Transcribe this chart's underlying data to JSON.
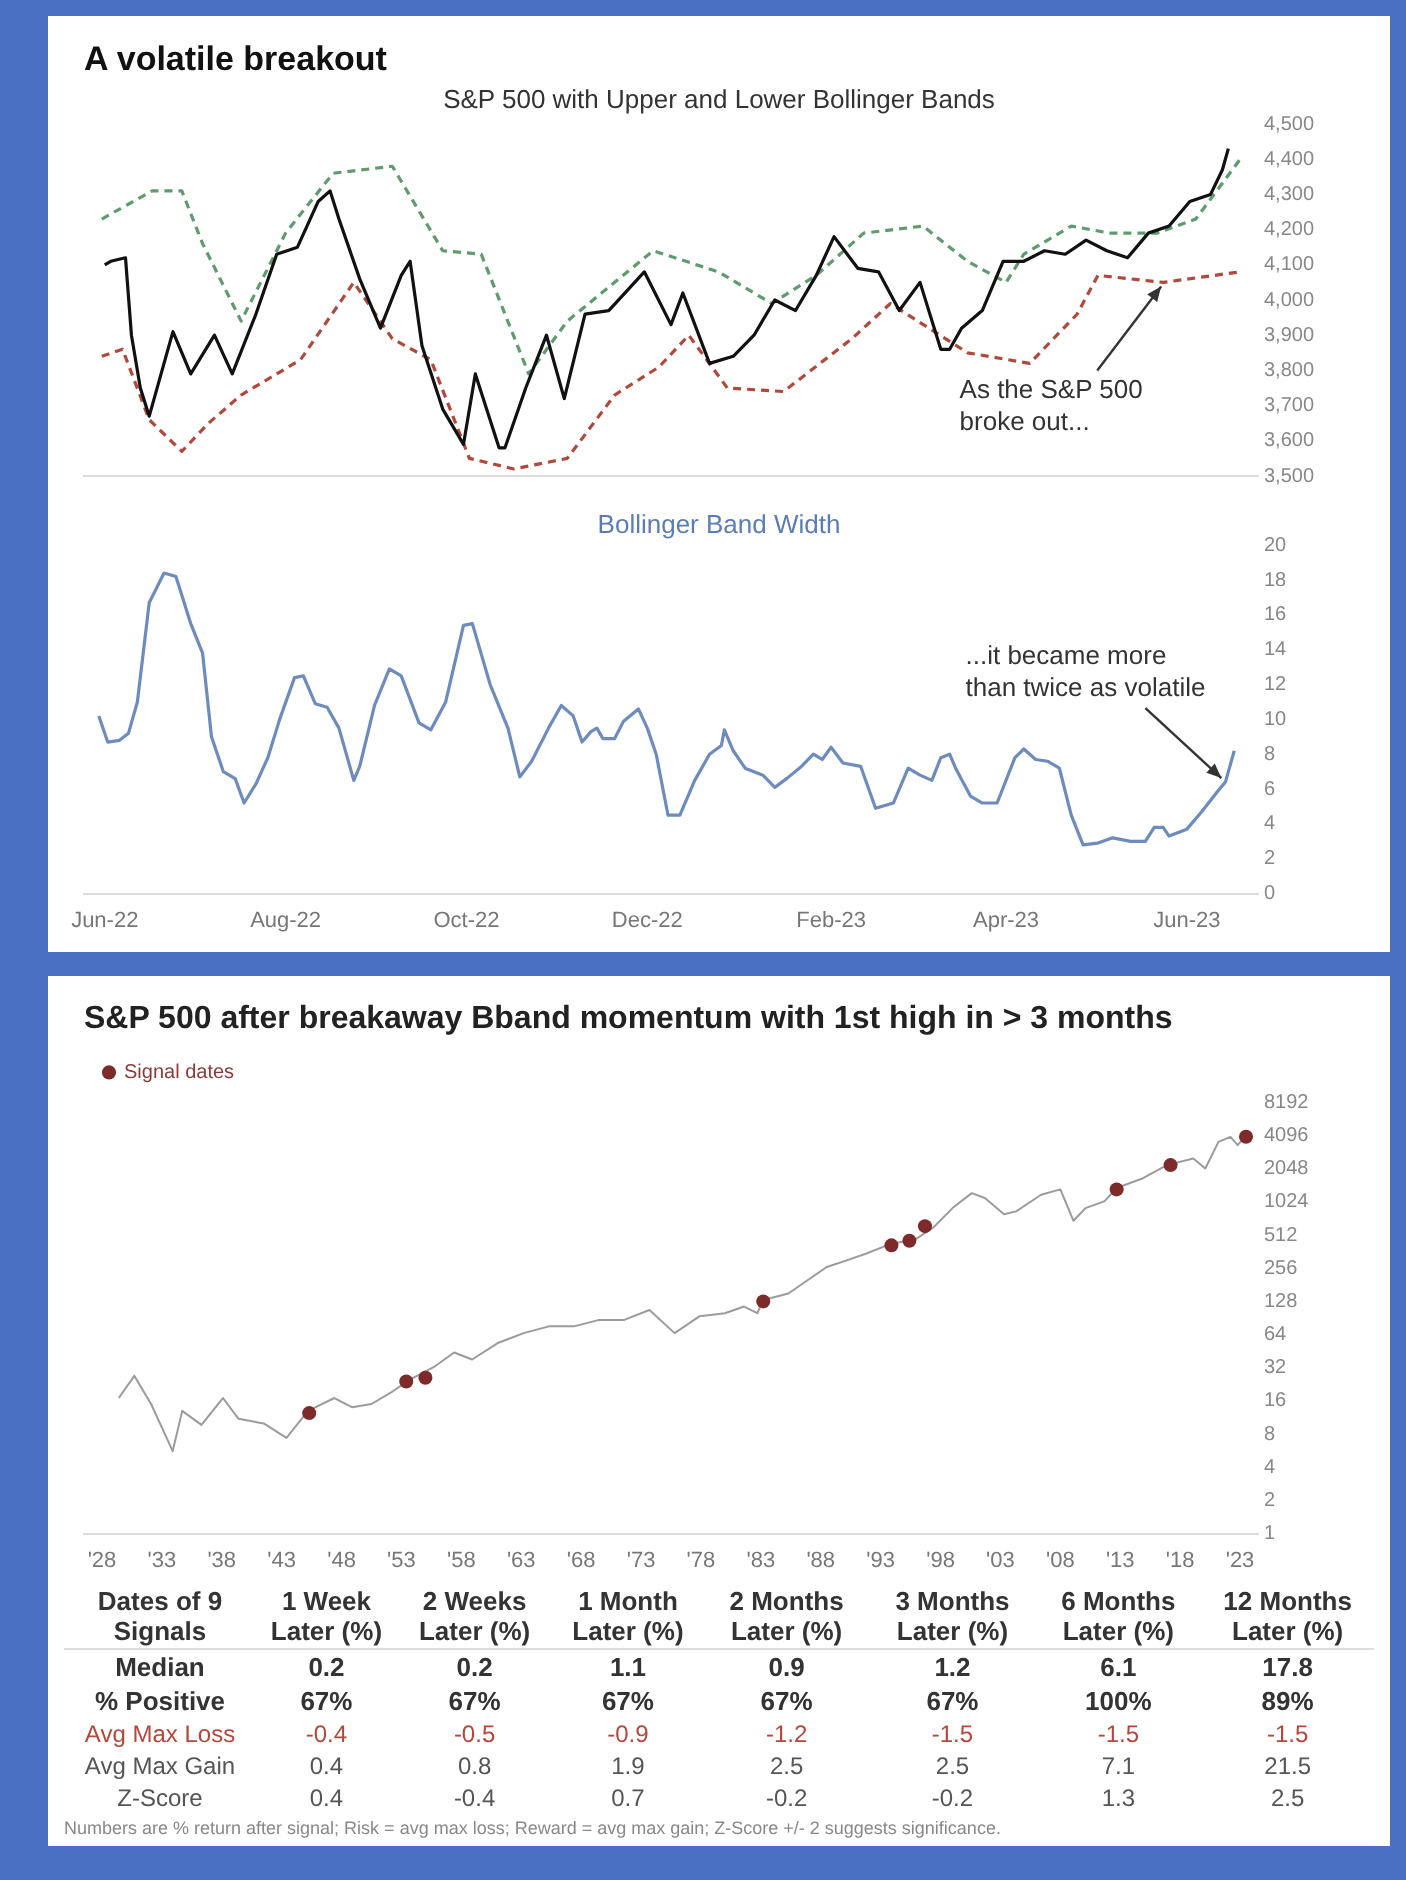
{
  "chart_data": [
    {
      "type": "line",
      "title": "A volatile breakout",
      "subtitle": "S&P 500 with Upper and Lower Bollinger Bands",
      "xlim": [
        "2022-05-25",
        "2023-06-25"
      ],
      "ylim": [
        3500,
        4500
      ],
      "yticks": [
        {
          "value": 3500,
          "label": "3,500"
        },
        {
          "value": 3600,
          "label": "3,600"
        },
        {
          "value": 3700,
          "label": "3,700"
        },
        {
          "value": 3800,
          "label": "3,800"
        },
        {
          "value": 3900,
          "label": "3,900"
        },
        {
          "value": 4000,
          "label": "4,000"
        },
        {
          "value": 4100,
          "label": "4,100"
        },
        {
          "value": 4200,
          "label": "4,200"
        },
        {
          "value": 4300,
          "label": "4,300"
        },
        {
          "value": 4400,
          "label": "4,400"
        },
        {
          "value": 4500,
          "label": "4,500"
        }
      ],
      "tick_labels": "y",
      "grid": false,
      "legend": false,
      "annotations": [
        {
          "text": "As the S&P 500 broke out...",
          "x": "2023-05-24",
          "y": 4050
        }
      ],
      "series": [
        {
          "color": "#5f9b6e",
          "line_style": "dashed",
          "x": [
            "2022-05-31",
            "2022-06-17",
            "2022-06-27",
            "2022-07-04",
            "2022-07-17",
            "2022-08-01",
            "2022-08-17",
            "2022-09-06",
            "2022-09-23",
            "2022-10-06",
            "2022-10-22",
            "2022-11-04",
            "2022-12-03",
            "2022-12-25",
            "2023-01-12",
            "2023-01-27",
            "2023-02-12",
            "2023-03-04",
            "2023-03-19",
            "2023-04-01",
            "2023-04-07",
            "2023-04-23",
            "2023-05-06",
            "2023-05-22",
            "2023-06-04",
            "2023-06-19"
          ],
          "values": [
            4230,
            4310,
            4310,
            4160,
            3940,
            4190,
            4360,
            4380,
            4140,
            4130,
            3790,
            3940,
            4140,
            4080,
            3990,
            4070,
            4190,
            4210,
            4110,
            4050,
            4130,
            4210,
            4190,
            4190,
            4230,
            4400
          ]
        },
        {
          "color": "#b0493c",
          "line_style": "dashed",
          "x": [
            "2022-05-31",
            "2022-06-07",
            "2022-06-16",
            "2022-06-27",
            "2022-07-06",
            "2022-07-17",
            "2022-08-06",
            "2022-08-24",
            "2022-09-06",
            "2022-09-19",
            "2022-10-02",
            "2022-10-17",
            "2022-11-04",
            "2022-11-20",
            "2022-12-05",
            "2022-12-15",
            "2022-12-28",
            "2023-01-16",
            "2023-02-08",
            "2023-02-21",
            "2023-03-06",
            "2023-03-19",
            "2023-04-09",
            "2023-04-25",
            "2023-05-02",
            "2023-05-24",
            "2023-06-19"
          ],
          "values": [
            3840,
            3860,
            3660,
            3570,
            3650,
            3730,
            3830,
            4050,
            3890,
            3830,
            3550,
            3520,
            3550,
            3730,
            3810,
            3900,
            3750,
            3740,
            3890,
            3990,
            3920,
            3850,
            3820,
            3960,
            4070,
            4050,
            4080
          ]
        },
        {
          "color": "#111111",
          "line_style": "solid",
          "x": [
            "2022-06-01",
            "2022-06-03",
            "2022-06-08",
            "2022-06-10",
            "2022-06-13",
            "2022-06-16",
            "2022-06-24",
            "2022-06-30",
            "2022-07-08",
            "2022-07-14",
            "2022-07-22",
            "2022-07-29",
            "2022-08-05",
            "2022-08-12",
            "2022-08-16",
            "2022-08-19",
            "2022-08-26",
            "2022-09-02",
            "2022-09-09",
            "2022-09-12",
            "2022-09-16",
            "2022-09-23",
            "2022-09-30",
            "2022-10-04",
            "2022-10-12",
            "2022-10-14",
            "2022-10-21",
            "2022-10-28",
            "2022-11-03",
            "2022-11-10",
            "2022-11-18",
            "2022-11-30",
            "2022-12-09",
            "2022-12-13",
            "2022-12-22",
            "2022-12-30",
            "2023-01-06",
            "2023-01-13",
            "2023-01-20",
            "2023-01-27",
            "2023-02-02",
            "2023-02-10",
            "2023-02-17",
            "2023-02-24",
            "2023-03-03",
            "2023-03-10",
            "2023-03-13",
            "2023-03-17",
            "2023-03-24",
            "2023-03-31",
            "2023-04-07",
            "2023-04-14",
            "2023-04-21",
            "2023-04-28",
            "2023-05-05",
            "2023-05-12",
            "2023-05-19",
            "2023-05-26",
            "2023-06-02",
            "2023-06-09",
            "2023-06-13",
            "2023-06-15"
          ],
          "values": [
            4100,
            4110,
            4120,
            3900,
            3750,
            3670,
            3910,
            3790,
            3900,
            3790,
            3960,
            4130,
            4150,
            4280,
            4310,
            4230,
            4060,
            3920,
            4070,
            4110,
            3870,
            3690,
            3590,
            3790,
            3580,
            3580,
            3750,
            3900,
            3720,
            3960,
            3970,
            4080,
            3930,
            4020,
            3820,
            3840,
            3900,
            4000,
            3970,
            4070,
            4180,
            4090,
            4080,
            3970,
            4050,
            3860,
            3860,
            3920,
            3970,
            4110,
            4110,
            4140,
            4130,
            4170,
            4140,
            4120,
            4190,
            4210,
            4280,
            4300,
            4370,
            4430
          ]
        }
      ]
    },
    {
      "type": "line",
      "title": "Bollinger Band Width",
      "xlim": [
        "2022-05-25",
        "2023-06-25"
      ],
      "ylim": [
        0,
        20
      ],
      "yticks": [
        0,
        2,
        4,
        6,
        8,
        10,
        12,
        14,
        16,
        18,
        20
      ],
      "xticks": [
        {
          "value": "2022-06-01",
          "label": "Jun-22"
        },
        {
          "value": "2022-08-01",
          "label": "Aug-22"
        },
        {
          "value": "2022-10-01",
          "label": "Oct-22"
        },
        {
          "value": "2022-12-01",
          "label": "Dec-22"
        },
        {
          "value": "2023-02-01",
          "label": "Feb-23"
        },
        {
          "value": "2023-04-01",
          "label": "Apr-23"
        },
        {
          "value": "2023-06-01",
          "label": "Jun-23"
        }
      ],
      "grid": false,
      "legend": false,
      "annotations": [
        {
          "text": "...it became more than twice as volatile",
          "x": "2023-06-14",
          "y": 6.4
        }
      ],
      "series": [
        {
          "color": "#6d8cbd",
          "line_style": "solid",
          "x": [
            "2022-05-30",
            "2022-06-02",
            "2022-06-06",
            "2022-06-09",
            "2022-06-12",
            "2022-06-16",
            "2022-06-21",
            "2022-06-25",
            "2022-06-30",
            "2022-07-04",
            "2022-07-07",
            "2022-07-11",
            "2022-07-15",
            "2022-07-18",
            "2022-07-22",
            "2022-07-26",
            "2022-07-30",
            "2022-08-04",
            "2022-08-07",
            "2022-08-11",
            "2022-08-15",
            "2022-08-19",
            "2022-08-24",
            "2022-08-26",
            "2022-08-31",
            "2022-09-05",
            "2022-09-09",
            "2022-09-15",
            "2022-09-19",
            "2022-09-24",
            "2022-09-30",
            "2022-10-03",
            "2022-10-09",
            "2022-10-15",
            "2022-10-19",
            "2022-10-23",
            "2022-10-29",
            "2022-11-02",
            "2022-11-06",
            "2022-11-09",
            "2022-11-12",
            "2022-11-14",
            "2022-11-16",
            "2022-11-20",
            "2022-11-23",
            "2022-11-28",
            "2022-12-01",
            "2022-12-04",
            "2022-12-08",
            "2022-12-12",
            "2022-12-17",
            "2022-12-22",
            "2022-12-26",
            "2022-12-27",
            "2022-12-30",
            "2023-01-03",
            "2023-01-09",
            "2023-01-13",
            "2023-01-17",
            "2023-01-22",
            "2023-01-26",
            "2023-01-29",
            "2023-02-01",
            "2023-02-05",
            "2023-02-11",
            "2023-02-16",
            "2023-02-22",
            "2023-02-27",
            "2023-03-03",
            "2023-03-07",
            "2023-03-10",
            "2023-03-13",
            "2023-03-15",
            "2023-03-20",
            "2023-03-24",
            "2023-03-29",
            "2023-04-04",
            "2023-04-07",
            "2023-04-11",
            "2023-04-15",
            "2023-04-19",
            "2023-04-23",
            "2023-04-27",
            "2023-05-02",
            "2023-05-07",
            "2023-05-13",
            "2023-05-18",
            "2023-05-21",
            "2023-05-24",
            "2023-05-26",
            "2023-06-01",
            "2023-06-06",
            "2023-06-12",
            "2023-06-14",
            "2023-06-17"
          ],
          "values": [
            10.2,
            8.7,
            8.8,
            9.2,
            11,
            16.7,
            18.4,
            18.2,
            15.5,
            13.8,
            9,
            7,
            6.6,
            5.2,
            6.3,
            7.8,
            10,
            12.4,
            12.5,
            10.9,
            10.7,
            9.5,
            6.5,
            7.3,
            10.8,
            12.9,
            12.5,
            9.8,
            9.4,
            11,
            15.4,
            15.5,
            12,
            9.5,
            6.7,
            7.6,
            9.6,
            10.8,
            10.2,
            8.7,
            9.3,
            9.5,
            8.9,
            8.9,
            9.9,
            10.6,
            9.5,
            8,
            4.5,
            4.5,
            6.5,
            8,
            8.5,
            9.4,
            8.2,
            7.2,
            6.8,
            6.1,
            6.6,
            7.3,
            8,
            7.7,
            8.4,
            7.5,
            7.3,
            4.9,
            5.2,
            7.2,
            6.8,
            6.5,
            7.8,
            8,
            7.2,
            5.6,
            5.2,
            5.2,
            7.8,
            8.3,
            7.7,
            7.6,
            7.2,
            4.5,
            2.8,
            2.9,
            3.2,
            3,
            3,
            3.8,
            3.8,
            3.3,
            3.7,
            4.7,
            6,
            6.4,
            8.2
          ]
        }
      ]
    },
    {
      "type": "line",
      "title": "S&P 500 after breakaway Bband momentum with 1st high in > 3 months",
      "log": "y",
      "xlim": [
        1926.5,
        2024.5
      ],
      "ylim": [
        1,
        8192
      ],
      "yticks": [
        1,
        2,
        4,
        8,
        16,
        32,
        64,
        128,
        256,
        512,
        1024,
        2048,
        4096,
        8192
      ],
      "xticks": [
        {
          "value": 1928,
          "label": "'28"
        },
        {
          "value": 1933,
          "label": "'33"
        },
        {
          "value": 1938,
          "label": "'38"
        },
        {
          "value": 1943,
          "label": "'43"
        },
        {
          "value": 1948,
          "label": "'48"
        },
        {
          "value": 1953,
          "label": "'53"
        },
        {
          "value": 1958,
          "label": "'58"
        },
        {
          "value": 1963,
          "label": "'63"
        },
        {
          "value": 1968,
          "label": "'68"
        },
        {
          "value": 1973,
          "label": "'73"
        },
        {
          "value": 1978,
          "label": "'78"
        },
        {
          "value": 1983,
          "label": "'83"
        },
        {
          "value": 1988,
          "label": "'88"
        },
        {
          "value": 1993,
          "label": "'93"
        },
        {
          "value": 1998,
          "label": "'98"
        },
        {
          "value": 2003,
          "label": "'03"
        },
        {
          "value": 2008,
          "label": "'08"
        },
        {
          "value": 2013,
          "label": "'13"
        },
        {
          "value": 2018,
          "label": "'18"
        },
        {
          "value": 2023,
          "label": "'23"
        }
      ],
      "grid": false,
      "legend": "top left",
      "series": [
        {
          "type": "line",
          "color": "#9b9b9b",
          "x": [
            1929.4,
            1930.7,
            1932.1,
            1933.4,
            1933.9,
            1934.7,
            1936.3,
            1938.1,
            1939.4,
            1941.5,
            1943.4,
            1945.2,
            1947.4,
            1948.9,
            1950.5,
            1952.1,
            1953.7,
            1955.8,
            1957.4,
            1958.9,
            1961.1,
            1963.2,
            1965.3,
            1967.4,
            1969.5,
            1971.6,
            1973.7,
            1975.8,
            1977.9,
            1980.0,
            1981.6,
            1982.7,
            1983.2,
            1985.3,
            1986.9,
            1988.5,
            1990.1,
            1991.7,
            1993.8,
            1995.9,
            1997.4,
            1999.0,
            2000.6,
            2001.7,
            2003.3,
            2004.3,
            2006.4,
            2008.0,
            2009.1,
            2010.1,
            2011.7,
            2012.7,
            2014.9,
            2016.9,
            2019.1,
            2020.1,
            2021.2,
            2022.2,
            2022.8,
            2023.5
          ],
          "values": [
            17,
            27,
            15,
            7.4,
            5.6,
            13,
            9.7,
            17,
            11,
            10,
            7.4,
            13,
            17,
            14,
            15,
            19,
            25,
            33,
            44,
            38,
            54,
            66,
            76,
            76,
            87,
            87,
            107,
            66,
            94,
            100,
            115,
            100,
            132,
            151,
            199,
            263,
            300,
            345,
            424,
            468,
            600,
            900,
            1230,
            1110,
            790,
            840,
            1190,
            1330,
            690,
            900,
            1040,
            1370,
            1680,
            2210,
            2540,
            2060,
            3590,
            3980,
            3350,
            4100
          ]
        },
        {
          "type": "scatter",
          "name": "Signal dates",
          "color": "#7d2a2a",
          "x": [
            1945.3,
            1953.4,
            1955.0,
            1983.2,
            1993.9,
            1995.4,
            1996.7,
            2012.7,
            2017.2,
            2023.5
          ],
          "values": [
            12.4,
            24,
            26,
            128,
            413,
            455,
            617,
            1330,
            2210,
            3990
          ]
        }
      ]
    },
    {
      "type": "other",
      "ylabel": "Dates of 9 Signals",
      "categories": [
        "1 Week Later (%)",
        "2 Weeks Later (%)",
        "1 Month Later (%)",
        "2 Months Later (%)",
        "3 Months Later (%)",
        "6 Months Later (%)",
        "12 Months Later (%)"
      ],
      "data_labels": true,
      "annotations": [
        "Numbers are % return after signal; Risk = avg max loss; Reward = avg max gain; Z-Score +/- 2 suggests significance."
      ],
      "series": [
        {
          "name": "Median",
          "color": "#333333",
          "values": [
            0.2,
            0.2,
            1.1,
            0.9,
            1.2,
            6.1,
            17.8
          ]
        },
        {
          "name": "% Positive",
          "color": "#333333",
          "values": [
            67,
            67,
            67,
            67,
            67,
            100,
            89
          ],
          "value_labels": [
            "67%",
            "67%",
            "67%",
            "67%",
            "67%",
            "100%",
            "89%"
          ]
        },
        {
          "name": "Avg Max Loss",
          "color": "#b5473a",
          "values": [
            -0.4,
            -0.5,
            -0.9,
            -1.2,
            -1.5,
            -1.5,
            -1.5
          ]
        },
        {
          "name": "Avg Max Gain",
          "color": "#555555",
          "values": [
            0.4,
            0.8,
            1.9,
            2.5,
            2.5,
            7.1,
            21.5
          ]
        },
        {
          "name": "Z-Score",
          "color": "#555555",
          "values": [
            0.4,
            -0.4,
            0.7,
            -0.2,
            -0.2,
            1.3,
            2.5
          ]
        }
      ]
    }
  ]
}
